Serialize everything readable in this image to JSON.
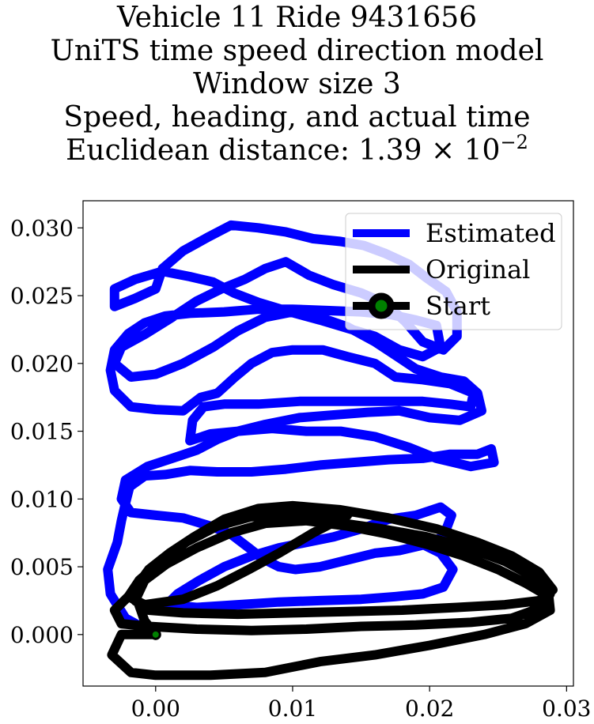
{
  "title_lines": [
    "Vehicle 11 Ride 9431656",
    "UniTS time speed direction model",
    "Window size 3",
    "Speed, heading, and actual time"
  ],
  "title_metric_prefix": "Euclidean distance: 1.39 × 10",
  "title_metric_exponent": "−2",
  "colors": {
    "estimated": "#0000ff",
    "original": "#000000",
    "start": "#008000"
  },
  "chart_data": {
    "type": "line",
    "xlabel": "",
    "ylabel": "",
    "xlim": [
      -0.0053,
      0.0305
    ],
    "ylim": [
      -0.0038,
      0.032
    ],
    "xticks": [
      0.0,
      0.01,
      0.02,
      0.03
    ],
    "xtick_labels": [
      "0.00",
      "0.01",
      "0.02",
      "0.03"
    ],
    "yticks": [
      0.0,
      0.005,
      0.01,
      0.015,
      0.02,
      0.025,
      0.03
    ],
    "ytick_labels": [
      "0.000",
      "0.005",
      "0.010",
      "0.015",
      "0.020",
      "0.025",
      "0.030"
    ],
    "grid": false,
    "legend_position": "upper right",
    "series": [
      {
        "name": "Estimated",
        "color": "#0000ff",
        "points": [
          [
            0.0,
            0.0
          ],
          [
            -0.0022,
            0.0012
          ],
          [
            -0.0033,
            0.003
          ],
          [
            -0.0035,
            0.0048
          ],
          [
            -0.0028,
            0.0068
          ],
          [
            -0.0025,
            0.0084
          ],
          [
            -0.0022,
            0.0097
          ],
          [
            -0.0019,
            0.0109
          ],
          [
            -0.0008,
            0.0117
          ],
          [
            0.0007,
            0.0118
          ],
          [
            0.0025,
            0.0121
          ],
          [
            0.0045,
            0.012
          ],
          [
            0.007,
            0.012
          ],
          [
            0.0095,
            0.0122
          ],
          [
            0.012,
            0.0125
          ],
          [
            0.0145,
            0.0127
          ],
          [
            0.017,
            0.0129
          ],
          [
            0.0195,
            0.013
          ],
          [
            0.0215,
            0.0133
          ],
          [
            0.0235,
            0.0133
          ],
          [
            0.0245,
            0.0137
          ],
          [
            0.0247,
            0.0127
          ],
          [
            0.023,
            0.0124
          ],
          [
            0.0205,
            0.013
          ],
          [
            0.0185,
            0.0138
          ],
          [
            0.016,
            0.0146
          ],
          [
            0.0135,
            0.015
          ],
          [
            0.011,
            0.015
          ],
          [
            0.0085,
            0.0152
          ],
          [
            0.006,
            0.015
          ],
          [
            0.004,
            0.0148
          ],
          [
            0.0025,
            0.0143
          ],
          [
            0.0027,
            0.0158
          ],
          [
            0.0035,
            0.0168
          ],
          [
            0.005,
            0.017
          ],
          [
            0.0075,
            0.017
          ],
          [
            0.0105,
            0.0172
          ],
          [
            0.0135,
            0.0172
          ],
          [
            0.0165,
            0.0172
          ],
          [
            0.0195,
            0.0172
          ],
          [
            0.0215,
            0.017
          ],
          [
            0.023,
            0.0168
          ],
          [
            0.0232,
            0.0178
          ],
          [
            0.0215,
            0.0185
          ],
          [
            0.0195,
            0.0188
          ],
          [
            0.0175,
            0.019
          ],
          [
            0.016,
            0.02
          ],
          [
            0.014,
            0.0205
          ],
          [
            0.0122,
            0.021
          ],
          [
            0.01,
            0.021
          ],
          [
            0.0085,
            0.0208
          ],
          [
            0.007,
            0.02
          ],
          [
            0.0058,
            0.019
          ],
          [
            0.0045,
            0.0178
          ],
          [
            0.0033,
            0.0175
          ],
          [
            0.002,
            0.0165
          ],
          [
            0.0,
            0.0166
          ],
          [
            -0.0018,
            0.0168
          ],
          [
            -0.003,
            0.018
          ],
          [
            -0.0033,
            0.0195
          ],
          [
            -0.003,
            0.021
          ],
          [
            -0.002,
            0.0222
          ],
          [
            -0.0008,
            0.023
          ],
          [
            0.0007,
            0.0235
          ],
          [
            0.0025,
            0.0237
          ],
          [
            0.005,
            0.0238
          ],
          [
            0.0075,
            0.024
          ],
          [
            0.01,
            0.024
          ],
          [
            0.0125,
            0.0239
          ],
          [
            0.015,
            0.0238
          ],
          [
            0.0172,
            0.0236
          ],
          [
            0.019,
            0.0232
          ],
          [
            0.0205,
            0.0228
          ],
          [
            0.0208,
            0.0212
          ],
          [
            0.0195,
            0.0205
          ],
          [
            0.0178,
            0.021
          ],
          [
            0.016,
            0.022
          ],
          [
            0.014,
            0.0226
          ],
          [
            0.012,
            0.0232
          ],
          [
            0.0098,
            0.0238
          ],
          [
            0.0075,
            0.0245
          ],
          [
            0.0057,
            0.0252
          ],
          [
            0.0042,
            0.026
          ],
          [
            0.0025,
            0.0264
          ],
          [
            0.0005,
            0.0268
          ],
          [
            -0.0015,
            0.0262
          ],
          [
            -0.003,
            0.0255
          ],
          [
            -0.003,
            0.0242
          ],
          [
            -0.0015,
            0.0248
          ],
          [
            0.0,
            0.0255
          ],
          [
            0.0005,
            0.027
          ],
          [
            0.002,
            0.0283
          ],
          [
            0.0038,
            0.0293
          ],
          [
            0.0055,
            0.0302
          ],
          [
            0.0075,
            0.03
          ],
          [
            0.0095,
            0.0297
          ],
          [
            0.0115,
            0.0292
          ],
          [
            0.0135,
            0.029
          ],
          [
            0.0152,
            0.0287
          ],
          [
            0.0168,
            0.0281
          ],
          [
            0.0185,
            0.0273
          ],
          [
            0.0198,
            0.0263
          ],
          [
            0.0212,
            0.0253
          ],
          [
            0.022,
            0.0238
          ],
          [
            0.022,
            0.022
          ],
          [
            0.021,
            0.021
          ],
          [
            0.0195,
            0.0216
          ],
          [
            0.0182,
            0.0231
          ],
          [
            0.0168,
            0.0244
          ],
          [
            0.015,
            0.0252
          ],
          [
            0.013,
            0.0258
          ],
          [
            0.0112,
            0.0265
          ],
          [
            0.0095,
            0.0275
          ],
          [
            0.008,
            0.027
          ],
          [
            0.0065,
            0.0262
          ],
          [
            0.0048,
            0.0255
          ],
          [
            0.003,
            0.0246
          ],
          [
            0.0012,
            0.0234
          ],
          [
            -0.0007,
            0.0222
          ],
          [
            -0.0025,
            0.0212
          ],
          [
            -0.003,
            0.02
          ],
          [
            -0.0018,
            0.019
          ],
          [
            0.0,
            0.0192
          ],
          [
            0.002,
            0.02
          ],
          [
            0.0042,
            0.0212
          ],
          [
            0.006,
            0.0224
          ],
          [
            0.008,
            0.0234
          ],
          [
            0.01,
            0.0238
          ],
          [
            0.012,
            0.0234
          ],
          [
            0.014,
            0.0227
          ],
          [
            0.016,
            0.0216
          ],
          [
            0.0175,
            0.0206
          ],
          [
            0.019,
            0.0196
          ],
          [
            0.0208,
            0.019
          ],
          [
            0.0225,
            0.0187
          ],
          [
            0.0235,
            0.0178
          ],
          [
            0.0238,
            0.0165
          ],
          [
            0.0222,
            0.0158
          ],
          [
            0.02,
            0.016
          ],
          [
            0.0178,
            0.0165
          ],
          [
            0.0155,
            0.0164
          ],
          [
            0.013,
            0.0162
          ],
          [
            0.0105,
            0.016
          ],
          [
            0.008,
            0.0155
          ],
          [
            0.006,
            0.015
          ],
          [
            0.0045,
            0.0144
          ],
          [
            0.003,
            0.0136
          ],
          [
            0.0012,
            0.013
          ],
          [
            -0.0006,
            0.0124
          ],
          [
            -0.0022,
            0.0114
          ],
          [
            -0.0025,
            0.01
          ],
          [
            -0.0018,
            0.009
          ],
          [
            0.0,
            0.0088
          ],
          [
            0.002,
            0.0086
          ],
          [
            0.004,
            0.008
          ],
          [
            0.0055,
            0.0074
          ],
          [
            0.0068,
            0.0064
          ],
          [
            0.0078,
            0.0056
          ],
          [
            0.009,
            0.005
          ],
          [
            0.0102,
            0.0048
          ],
          [
            0.012,
            0.005
          ],
          [
            0.014,
            0.0055
          ],
          [
            0.016,
            0.006
          ],
          [
            0.0178,
            0.0062
          ],
          [
            0.0195,
            0.0066
          ],
          [
            0.021,
            0.0072
          ],
          [
            0.0216,
            0.0088
          ],
          [
            0.0208,
            0.0094
          ],
          [
            0.019,
            0.0088
          ],
          [
            0.017,
            0.0085
          ],
          [
            0.015,
            0.0078
          ],
          [
            0.013,
            0.0072
          ],
          [
            0.011,
            0.0068
          ],
          [
            0.009,
            0.0064
          ],
          [
            0.007,
            0.0058
          ],
          [
            0.005,
            0.005
          ],
          [
            0.0032,
            0.004
          ],
          [
            0.0016,
            0.003
          ],
          [
            0.0008,
            0.0022
          ],
          [
            0.003,
            0.002
          ],
          [
            0.006,
            0.0022
          ],
          [
            0.009,
            0.0024
          ],
          [
            0.012,
            0.0025
          ],
          [
            0.015,
            0.0026
          ],
          [
            0.0175,
            0.0028
          ],
          [
            0.0195,
            0.003
          ],
          [
            0.021,
            0.0035
          ],
          [
            0.0217,
            0.0048
          ],
          [
            0.0208,
            0.006
          ],
          [
            0.0192,
            0.0068
          ],
          [
            0.017,
            0.0075
          ],
          [
            0.015,
            0.008
          ]
        ]
      },
      {
        "name": "Original",
        "color": "#000000",
        "points": [
          [
            0.0,
            0.0
          ],
          [
            -0.0025,
            0.0
          ],
          [
            -0.0032,
            -0.0015
          ],
          [
            -0.0018,
            -0.0028
          ],
          [
            0.0,
            -0.003
          ],
          [
            0.004,
            -0.003
          ],
          [
            0.008,
            -0.0028
          ],
          [
            0.012,
            -0.002
          ],
          [
            0.016,
            -0.0015
          ],
          [
            0.02,
            -0.0008
          ],
          [
            0.024,
            0.0
          ],
          [
            0.027,
            0.0008
          ],
          [
            0.0288,
            0.0018
          ],
          [
            0.0287,
            0.0028
          ],
          [
            0.027,
            0.0038
          ],
          [
            0.025,
            0.0048
          ],
          [
            0.0225,
            0.0058
          ],
          [
            0.02,
            0.0066
          ],
          [
            0.017,
            0.0074
          ],
          [
            0.014,
            0.008
          ],
          [
            0.011,
            0.0084
          ],
          [
            0.008,
            0.0082
          ],
          [
            0.0055,
            0.0075
          ],
          [
            0.003,
            0.0064
          ],
          [
            0.0008,
            0.0052
          ],
          [
            -0.0008,
            0.004
          ],
          [
            -0.0015,
            0.0025
          ],
          [
            -0.0005,
            0.0018
          ],
          [
            0.002,
            0.0016
          ],
          [
            0.006,
            0.0015
          ],
          [
            0.01,
            0.0016
          ],
          [
            0.014,
            0.0017
          ],
          [
            0.018,
            0.0018
          ],
          [
            0.022,
            0.002
          ],
          [
            0.0255,
            0.0022
          ],
          [
            0.028,
            0.0025
          ],
          [
            0.029,
            0.0033
          ],
          [
            0.028,
            0.0046
          ],
          [
            0.026,
            0.0058
          ],
          [
            0.0235,
            0.0068
          ],
          [
            0.0205,
            0.0078
          ],
          [
            0.017,
            0.0086
          ],
          [
            0.0135,
            0.0092
          ],
          [
            0.01,
            0.0095
          ],
          [
            0.0075,
            0.0093
          ],
          [
            0.005,
            0.0085
          ],
          [
            0.0028,
            0.0072
          ],
          [
            0.001,
            0.006
          ],
          [
            -0.0005,
            0.0048
          ],
          [
            -0.0018,
            0.003
          ],
          [
            -0.003,
            0.0018
          ],
          [
            -0.0025,
            0.0008
          ],
          [
            -0.0005,
            0.0006
          ],
          [
            0.003,
            0.0004
          ],
          [
            0.007,
            0.0003
          ],
          [
            0.011,
            0.0004
          ],
          [
            0.015,
            0.0006
          ],
          [
            0.019,
            0.0007
          ],
          [
            0.023,
            0.0009
          ],
          [
            0.026,
            0.0012
          ],
          [
            0.0282,
            0.002
          ],
          [
            0.0288,
            0.003
          ],
          [
            0.0275,
            0.0043
          ],
          [
            0.0255,
            0.0054
          ],
          [
            0.0228,
            0.0064
          ],
          [
            0.0198,
            0.0072
          ],
          [
            0.0165,
            0.0078
          ],
          [
            0.013,
            0.0083
          ],
          [
            0.01,
            0.0086
          ],
          [
            0.007,
            0.0087
          ],
          [
            0.0045,
            0.008
          ],
          [
            0.0022,
            0.0068
          ],
          [
            0.0005,
            0.0055
          ],
          [
            -0.0012,
            0.004
          ],
          [
            -0.002,
            0.0028
          ],
          [
            -0.0008,
            0.0022
          ],
          [
            0.002,
            0.0026
          ],
          [
            0.0045,
            0.0036
          ],
          [
            0.0068,
            0.0048
          ],
          [
            0.009,
            0.006
          ],
          [
            0.0115,
            0.0075
          ],
          [
            0.014,
            0.0088
          ],
          [
            0.012,
            0.009
          ],
          [
            0.0095,
            0.0092
          ],
          [
            0.007,
            0.0088
          ],
          [
            0.0048,
            0.0082
          ],
          [
            0.0025,
            0.007
          ],
          [
            0.0005,
            0.0056
          ],
          [
            -0.0008,
            0.0042
          ],
          [
            -0.0015,
            0.003
          ],
          [
            -0.0008,
            0.001
          ],
          [
            0.0,
            0.0
          ]
        ]
      }
    ],
    "start": {
      "name": "Start",
      "x": 0.0,
      "y": 0.0,
      "color": "#008000"
    },
    "legend": [
      "Estimated",
      "Original",
      "Start"
    ]
  }
}
